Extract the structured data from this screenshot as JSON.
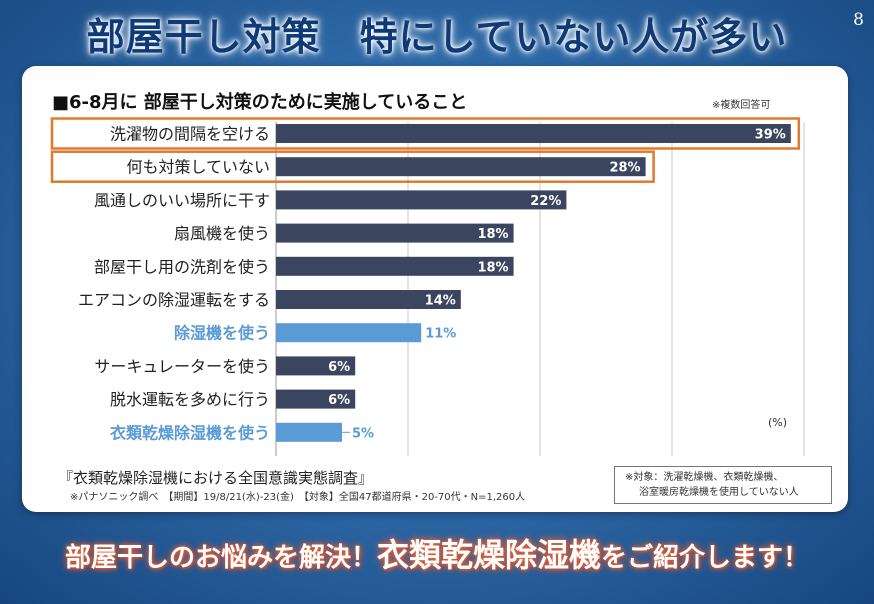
{
  "slide": {
    "title": "部屋干し対策　特にしていない人が多い",
    "page_number": "8",
    "bottom_banner_pre": "部屋干しのお悩みを解決！",
    "bottom_banner_product": "衣類乾燥除湿機",
    "bottom_banner_post": "をご紹介します！"
  },
  "notes": {
    "multiple_answers": "※複数回答可",
    "unit": "(%)",
    "source_title": "『衣類乾燥除湿機における全国意識実態調査』",
    "source_detail": "※パナソニック調べ　【期間】19/8/21(水)-23(金)　【対象】全国47都道府県・20-70代・N=1,260人",
    "target_line1": "※対象：洗濯乾燥機、衣類乾燥機、",
    "target_line2": "浴室暖房乾燥機を使用していない人"
  },
  "chart_data": {
    "type": "bar",
    "orientation": "horizontal",
    "title": "■6-8月に 部屋干し対策のために実施していること",
    "categories": [
      "洗濯物の間隔を空ける",
      "何も対策していない",
      "風通しのいい場所に干す",
      "扇風機を使う",
      "部屋干し用の洗剤を使う",
      "エアコンの除湿運転をする",
      "除湿機を使う",
      "サーキュレーターを使う",
      "脱水運転を多めに行う",
      "衣類乾燥除湿機を使う"
    ],
    "values": [
      39,
      28,
      22,
      18,
      18,
      14,
      11,
      6,
      6,
      5
    ],
    "value_labels": [
      "39%",
      "28%",
      "22%",
      "18%",
      "18%",
      "14%",
      "11%",
      "6%",
      "6%",
      "5%"
    ],
    "highlighted_blue": [
      "除湿機を使う",
      "衣類乾燥除湿機を使う"
    ],
    "outlined_orange": [
      "洗濯物の間隔を空ける",
      "何も対策していない"
    ],
    "xlim": [
      0,
      40
    ],
    "grid": true,
    "colors": {
      "bar_default": "#3b4560",
      "bar_highlight": "#5b9bd5",
      "label_highlight": "#5b9bd5",
      "outline": "#e07a2e",
      "grid": "#c8c8c8"
    }
  }
}
